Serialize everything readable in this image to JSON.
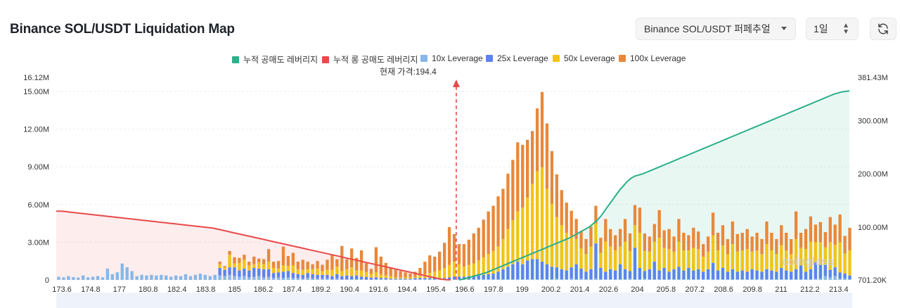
{
  "header": {
    "title": "Binance SOL/USDT Liquidation Map",
    "pair_select": "Binance SOL/USDT 퍼페추얼",
    "time_select": "1일",
    "refresh_icon": "refresh-icon"
  },
  "colors": {
    "short_cum": "#2bb08a",
    "long_cum": "#e84a4a",
    "lev10": "#86b7e8",
    "lev25": "#5b84ec",
    "lev50": "#f3c315",
    "lev100": "#e8883a",
    "current": "#e84a4a"
  },
  "legend": {
    "short_cum": "누적 공매도 레버리지",
    "long_cum": "누적 롱 공매도 레버리지",
    "lev10": "10x Leverage",
    "lev25": "25x Leverage",
    "lev50": "50x Leverage",
    "lev100": "100x Leverage"
  },
  "current_price_label": "현재 가격:194.4",
  "watermark": "coinglass",
  "chart_data": {
    "type": "bar",
    "title": "Binance SOL/USDT Liquidation Map",
    "x_ticks": [
      "173.6",
      "174.8",
      "177",
      "180.8",
      "182.4",
      "183.8",
      "185",
      "186.2",
      "187.4",
      "189.2",
      "190.4",
      "191.6",
      "194.4",
      "195.4",
      "196.6",
      "197.8",
      "199",
      "200.2",
      "201.4",
      "202.6",
      "204",
      "205.8",
      "207.2",
      "208.6",
      "209.8",
      "211",
      "212.2",
      "213.4"
    ],
    "x_range": [
      173.6,
      214.7
    ],
    "current_price": 194.4,
    "y_left": {
      "ticks": [
        "0",
        "3.00M",
        "6.00M",
        "9.00M",
        "12.00M",
        "15.00M"
      ],
      "max_label": "16.12M",
      "min": 0,
      "max": 16.12
    },
    "y_right": {
      "ticks": [
        "701.20K",
        "100.00M",
        "200.00M",
        "300.00M"
      ],
      "max_label": "381.43M",
      "min": 0.7012,
      "max": 381.43
    },
    "series": [
      {
        "name": "10x Leverage",
        "values": [
          0.25,
          0.2,
          0.3,
          0.22,
          0.18,
          0.35,
          0.2,
          0.25,
          0.3,
          0.2,
          0.9,
          0.45,
          0.6,
          1.3,
          1.0,
          0.7,
          0.3,
          0.4,
          0.35,
          0.4,
          0.35,
          0.4,
          0.35,
          0.25,
          0.35,
          0.3,
          0.45,
          0.3,
          0.4,
          0.5,
          0.4,
          0.3,
          0.4,
          0.35,
          0.3,
          0.4,
          0.3,
          0.25,
          0.3,
          0.2,
          0.25,
          0.3,
          0.2,
          0.25,
          0.15,
          0.2,
          0.15,
          0.2,
          0.15,
          0.15,
          0.1,
          0.15,
          0.1,
          0.1,
          0.1,
          0.1,
          0.05,
          0.1,
          0.05,
          0.05,
          0.05,
          0.05,
          0.05,
          0.03,
          0.03,
          0.05,
          0.05,
          0.05,
          0.05,
          0.05,
          0.05,
          0.05,
          0.05,
          0.05,
          0.05,
          0.05,
          0.05,
          0.05,
          0.05,
          0.05,
          0.05,
          0.05,
          0.05,
          0.05,
          0.05,
          0.05,
          0.05,
          0.05,
          0.05,
          0.05,
          0.05,
          0.05,
          0.05,
          0.05,
          0.05,
          0.05,
          0.05,
          0.05,
          0.05,
          0.05,
          0.05,
          0.05,
          0.1,
          0.05,
          0.05,
          0.1,
          0.05,
          0.1,
          0.05,
          0.05,
          0.1,
          0.05,
          0.05,
          0.05,
          0.05,
          0.05,
          0.05,
          0.1,
          0.05,
          0.05,
          0.1,
          0.05,
          0.05,
          0.05,
          0.05,
          0.05,
          0.05,
          0.05,
          0.05,
          0.05,
          0.05,
          0.05,
          0.05,
          0.05,
          0.05,
          0.05,
          0.05,
          0.05,
          0.05,
          0.05,
          0.05,
          0.05,
          0.05,
          0.05,
          0.05,
          0.05,
          0.05,
          0.05,
          0.05,
          0.05,
          0.05,
          0.05,
          0.05,
          0.05,
          0.05,
          0.1,
          0.1,
          0.3,
          0.2,
          0.3,
          0.1,
          0.1,
          0.05
        ]
      },
      {
        "name": "25x Leverage",
        "values": [
          0,
          0,
          0,
          0,
          0,
          0,
          0,
          0,
          0,
          0,
          0,
          0,
          0,
          0,
          0,
          0,
          0,
          0,
          0,
          0,
          0,
          0,
          0,
          0,
          0,
          0,
          0,
          0,
          0,
          0,
          0,
          0,
          0,
          0.6,
          0.5,
          0.6,
          0.7,
          0.5,
          0.6,
          0.55,
          0.7,
          0.6,
          0.65,
          0.6,
          0.4,
          0.4,
          0.5,
          0.5,
          0.4,
          0.3,
          0.3,
          0.4,
          0.35,
          0.3,
          0.3,
          0.3,
          0.25,
          0.35,
          0.25,
          0.3,
          0.25,
          0.3,
          0.2,
          0.2,
          0.15,
          0.15,
          0.1,
          0.1,
          0.05,
          0.05,
          0.05,
          0.05,
          0.05,
          0.1,
          0.1,
          0.1,
          0.1,
          0.1,
          0.1,
          0.1,
          0.15,
          0.2,
          0.2,
          0.2,
          0.25,
          0.25,
          0.3,
          0.35,
          0.4,
          0.45,
          0.6,
          0.8,
          1.0,
          1.2,
          1.4,
          1.2,
          1.5,
          1.6,
          1.6,
          1.4,
          1.2,
          1.0,
          0.9,
          0.8,
          0.7,
          0.9,
          1.2,
          0.8,
          0.6,
          0.8,
          2.8,
          0.9,
          0.6,
          0.8,
          0.7,
          1.2,
          0.8,
          0.6,
          2.5,
          0.9,
          0.6,
          0.8,
          1.4,
          0.7,
          0.9,
          0.6,
          0.8,
          1.0,
          0.7,
          0.9,
          0.7,
          0.8,
          0.6,
          0.8,
          1.3,
          0.7,
          0.9,
          0.6,
          0.8,
          0.6,
          0.7,
          0.6,
          0.8,
          0.7,
          0.6,
          0.8,
          0.7,
          0.6,
          0.9,
          0.7,
          0.6,
          0.8,
          1.1,
          0.6,
          0.8,
          1.3,
          1.1,
          0.9,
          0.6,
          0.7,
          0.5,
          0.4,
          0.3
        ]
      },
      {
        "name": "50x Leverage",
        "values": [
          0,
          0,
          0,
          0,
          0,
          0,
          0,
          0,
          0,
          0,
          0,
          0,
          0,
          0,
          0,
          0,
          0,
          0,
          0,
          0,
          0,
          0,
          0,
          0,
          0,
          0,
          0,
          0,
          0,
          0,
          0,
          0,
          0,
          0.3,
          0.2,
          1.0,
          0.3,
          0.6,
          0.7,
          0.4,
          0.3,
          0.5,
          0.4,
          0.6,
          0.4,
          0.3,
          0.5,
          0.4,
          0.6,
          0.4,
          0.4,
          0.3,
          0.4,
          0.5,
          0.3,
          0.4,
          0.5,
          0.6,
          0.4,
          0.5,
          0.7,
          0.4,
          0.5,
          0.4,
          0.3,
          0.4,
          0.3,
          0.2,
          0.2,
          0.1,
          0.1,
          0.1,
          0.1,
          0.1,
          0.2,
          0.3,
          0.4,
          0.5,
          0.6,
          0.8,
          1.0,
          1.2,
          1.0,
          0.8,
          0.9,
          1.0,
          1.2,
          1.4,
          1.6,
          1.8,
          2.0,
          2.4,
          3.0,
          3.5,
          4.0,
          4.5,
          5.0,
          6.0,
          7.0,
          7.5,
          6.0,
          5.0,
          4.0,
          3.5,
          3.0,
          2.5,
          2.0,
          1.6,
          1.4,
          1.8,
          1.6,
          1.2,
          2.4,
          1.8,
          1.6,
          1.4,
          2.2,
          1.6,
          1.8,
          2.8,
          1.6,
          1.4,
          1.6,
          2.6,
          1.6,
          1.8,
          1.4,
          2.0,
          1.6,
          1.4,
          1.8,
          1.6,
          1.2,
          1.4,
          2.2,
          1.6,
          1.8,
          1.4,
          2.0,
          1.6,
          1.6,
          1.8,
          1.4,
          1.6,
          1.4,
          2.0,
          1.6,
          1.4,
          1.8,
          1.6,
          1.4,
          2.4,
          1.4,
          1.8,
          2.2,
          1.6,
          1.8,
          1.4,
          2.2,
          1.8,
          2.4,
          1.6,
          2.0,
          1.4,
          1.2,
          1.0
        ]
      },
      {
        "name": "100x Leverage",
        "values": [
          0,
          0,
          0,
          0,
          0,
          0,
          0,
          0,
          0,
          0,
          0,
          0,
          0,
          0,
          0,
          0,
          0,
          0,
          0,
          0,
          0,
          0,
          0,
          0,
          0,
          0,
          0,
          0,
          0,
          0,
          0,
          0,
          0,
          0.2,
          0.1,
          0.3,
          0.5,
          0.4,
          0.4,
          0.3,
          0.6,
          0.3,
          0.4,
          1.0,
          0.5,
          0.6,
          1.5,
          0.8,
          1.0,
          0.6,
          0.8,
          0.6,
          0.4,
          0.6,
          0.5,
          0.8,
          1.2,
          0.6,
          2.0,
          0.8,
          1.5,
          1.0,
          1.6,
          0.7,
          0.4,
          2.0,
          1.4,
          1.0,
          0.7,
          0.6,
          0.5,
          0.4,
          0.3,
          0.4,
          0.6,
          1.0,
          1.4,
          1.2,
          1.5,
          2.0,
          3.0,
          2.2,
          1.6,
          1.8,
          2.0,
          2.4,
          2.6,
          3.0,
          3.4,
          3.6,
          4.0,
          4.0,
          4.4,
          4.8,
          5.5,
          5.0,
          4.6,
          4.2,
          5.0,
          6.0,
          5.2,
          4.2,
          3.4,
          2.8,
          2.4,
          2.0,
          1.6,
          1.4,
          1.2,
          1.6,
          1.4,
          1.2,
          1.8,
          1.4,
          1.2,
          1.4,
          1.8,
          1.4,
          1.6,
          2.0,
          1.4,
          1.2,
          1.4,
          2.2,
          1.4,
          1.6,
          1.2,
          1.8,
          1.4,
          1.2,
          1.6,
          1.4,
          1.0,
          1.2,
          1.8,
          1.4,
          1.6,
          1.2,
          1.8,
          1.4,
          1.4,
          1.6,
          1.2,
          1.4,
          1.2,
          1.8,
          1.4,
          1.2,
          1.6,
          1.4,
          1.2,
          2.2,
          1.2,
          1.6,
          2.0,
          1.4,
          1.6,
          1.2,
          2.0,
          1.6,
          2.2,
          1.4,
          1.8,
          1.2,
          1.0,
          0.8
        ]
      },
      {
        "name": "누적 롱 공매도 레버리지",
        "axis": "right",
        "values": [
          130,
          130,
          129,
          128,
          127,
          126,
          125,
          124,
          123,
          122,
          121,
          120,
          119,
          118,
          117,
          116,
          115,
          114,
          113,
          112,
          111,
          110,
          109,
          108,
          107,
          106,
          105,
          104,
          103,
          102,
          101,
          100,
          99,
          98,
          96,
          94,
          92,
          90,
          88,
          86,
          84,
          82,
          80,
          78,
          76,
          74,
          72,
          70,
          68,
          66,
          64,
          62,
          60,
          58,
          56,
          54,
          52,
          50,
          48,
          46,
          44,
          42,
          40,
          38,
          36,
          34,
          32,
          30,
          28,
          26,
          24,
          22,
          20,
          18,
          16,
          14,
          12,
          10,
          8,
          6,
          4,
          2,
          1,
          0.7
        ]
      },
      {
        "name": "누적 공매도 레버리지",
        "axis": "right",
        "values": [
          0.7,
          2,
          4,
          6,
          8,
          10,
          12,
          14,
          17,
          20,
          23,
          26,
          29,
          32,
          35,
          38,
          41,
          44,
          47,
          50,
          53,
          56,
          59,
          62,
          65,
          68,
          71,
          74,
          77,
          80,
          84,
          88,
          92,
          96,
          100,
          106,
          112,
          120,
          130,
          140,
          150,
          160,
          170,
          178,
          186,
          192,
          196,
          198,
          200,
          203,
          206,
          209,
          212,
          215,
          218,
          221,
          224,
          227,
          230,
          233,
          236,
          239,
          242,
          245,
          248,
          251,
          254,
          257,
          260,
          263,
          266,
          269,
          272,
          275,
          278,
          281,
          284,
          287,
          290,
          293,
          296,
          299,
          302,
          305,
          308,
          311,
          314,
          317,
          320,
          323,
          326,
          329,
          332,
          335,
          338,
          341,
          344,
          347,
          350,
          352,
          354,
          355,
          356
        ]
      }
    ]
  }
}
